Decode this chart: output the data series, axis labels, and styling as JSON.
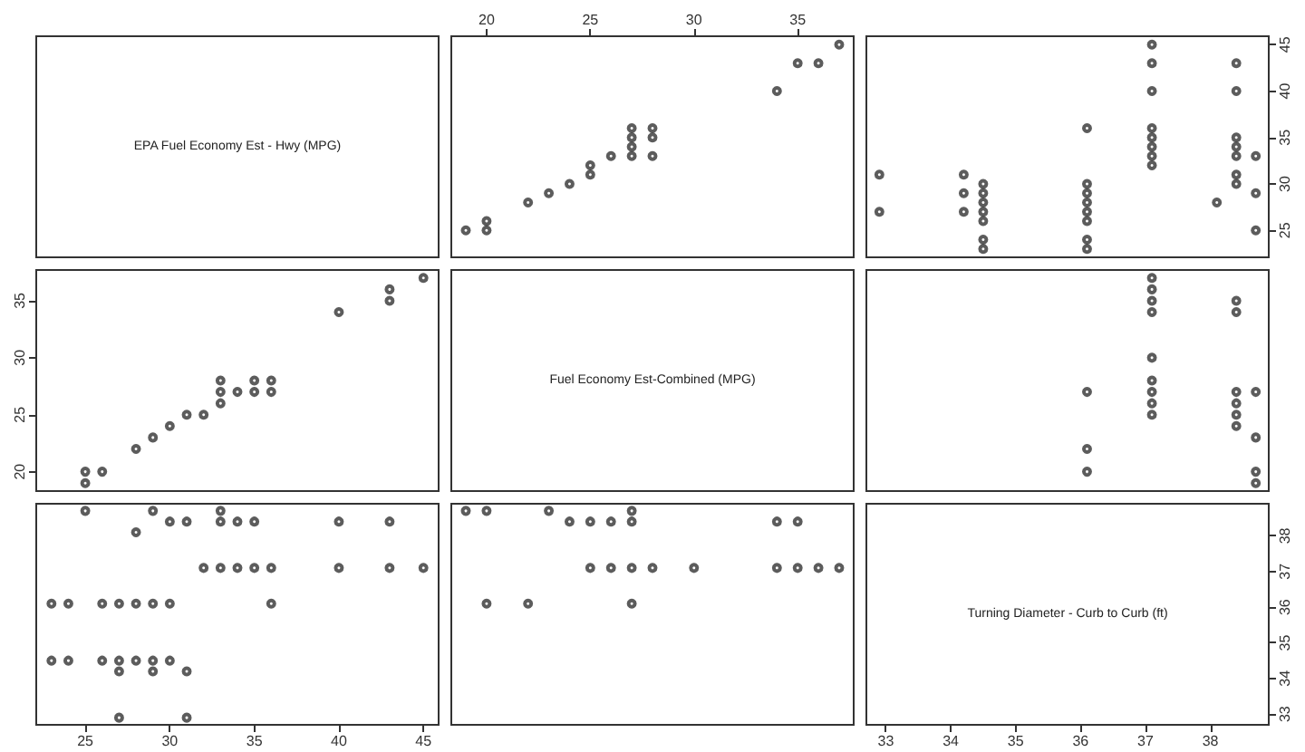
{
  "chart_data": [
    {
      "type": "other",
      "title": "EPA Fuel Economy Est - Hwy (MPG)"
    },
    {
      "type": "scatter",
      "xlim": [
        18.3,
        37.7
      ],
      "xticks": [
        20,
        25,
        30,
        35
      ],
      "ylim": [
        22.1,
        45.9
      ],
      "tick_labels": "x",
      "marker": "circle",
      "grid": false,
      "series": [
        {
          "color": "#333333",
          "x": [
            19,
            20,
            20,
            22,
            23,
            24,
            25,
            25,
            26,
            27,
            27,
            27,
            27,
            28,
            28,
            28,
            34,
            35,
            36,
            37
          ],
          "values": [
            25,
            26,
            25,
            28,
            29,
            30,
            31,
            32,
            33,
            33,
            34,
            35,
            36,
            33,
            35,
            36,
            40,
            43,
            43,
            45
          ]
        }
      ]
    },
    {
      "type": "scatter",
      "xlim": [
        32.7,
        38.9
      ],
      "ylim": [
        22.1,
        45.9
      ],
      "yticks": [
        25,
        30,
        35,
        40,
        45
      ],
      "tick_labels": "y",
      "marker": "circle",
      "grid": false,
      "series": [
        {
          "color": "#333333",
          "x": [
            32.9,
            32.9,
            34.2,
            34.2,
            34.2,
            34.5,
            34.5,
            34.5,
            34.5,
            34.5,
            34.5,
            34.5,
            36.1,
            36.1,
            36.1,
            36.1,
            36.1,
            36.1,
            36.1,
            36.1,
            37.1,
            37.1,
            37.1,
            37.1,
            37.1,
            37.1,
            37.1,
            37.1,
            38.1,
            38.4,
            38.4,
            38.4,
            38.4,
            38.4,
            38.4,
            38.4,
            38.7,
            38.7,
            38.7
          ],
          "values": [
            31,
            27,
            31,
            29,
            27,
            30,
            29,
            28,
            27,
            26,
            24,
            23,
            36,
            30,
            29,
            28,
            27,
            26,
            24,
            23,
            45,
            43,
            40,
            36,
            35,
            34,
            33,
            32,
            28,
            43,
            40,
            35,
            34,
            33,
            31,
            30,
            33,
            29,
            25
          ]
        }
      ]
    },
    {
      "type": "scatter",
      "xlim": [
        22.1,
        45.9
      ],
      "ylim": [
        18.3,
        37.7
      ],
      "yticks": [
        20,
        25,
        30,
        35
      ],
      "tick_labels": "y",
      "marker": "circle",
      "grid": false,
      "series": [
        {
          "color": "#333333",
          "x": [
            25,
            25,
            26,
            28,
            29,
            30,
            31,
            32,
            33,
            33,
            33,
            34,
            35,
            35,
            36,
            36,
            40,
            43,
            43,
            45
          ],
          "values": [
            19,
            20,
            20,
            22,
            23,
            24,
            25,
            25,
            26,
            27,
            28,
            27,
            27,
            28,
            27,
            28,
            34,
            35,
            36,
            37
          ]
        }
      ]
    },
    {
      "type": "other",
      "title": "Fuel Economy Est-Combined (MPG)"
    },
    {
      "type": "scatter",
      "xlim": [
        32.7,
        38.9
      ],
      "ylim": [
        18.3,
        37.7
      ],
      "tick_labels": false,
      "marker": "circle",
      "grid": false,
      "series": [
        {
          "color": "#333333",
          "x": [
            36.1,
            36.1,
            36.1,
            37.1,
            37.1,
            37.1,
            37.1,
            37.1,
            37.1,
            37.1,
            37.1,
            37.1,
            38.4,
            38.4,
            38.4,
            38.4,
            38.4,
            38.4,
            38.7,
            38.7,
            38.7,
            38.7
          ],
          "values": [
            27,
            22,
            20,
            37,
            36,
            35,
            34,
            30,
            28,
            27,
            26,
            25,
            35,
            34,
            27,
            26,
            25,
            24,
            27,
            23,
            20,
            19
          ]
        }
      ]
    },
    {
      "type": "scatter",
      "xlim": [
        22.1,
        45.9
      ],
      "xticks": [
        25,
        30,
        35,
        40,
        45
      ],
      "ylim": [
        32.7,
        38.9
      ],
      "tick_labels": "x",
      "marker": "circle",
      "grid": false,
      "series": [
        {
          "color": "#333333",
          "x": [
            25,
            29,
            33,
            30,
            31,
            33,
            34,
            35,
            40,
            43,
            28,
            32,
            33,
            34,
            35,
            36,
            40,
            43,
            45,
            23,
            24,
            26,
            27,
            28,
            29,
            30,
            36,
            23,
            24,
            26,
            27,
            28,
            29,
            30,
            27,
            29,
            31,
            27,
            31
          ],
          "values": [
            38.7,
            38.7,
            38.7,
            38.4,
            38.4,
            38.4,
            38.4,
            38.4,
            38.4,
            38.4,
            38.1,
            37.1,
            37.1,
            37.1,
            37.1,
            37.1,
            37.1,
            37.1,
            37.1,
            36.1,
            36.1,
            36.1,
            36.1,
            36.1,
            36.1,
            36.1,
            36.1,
            34.5,
            34.5,
            34.5,
            34.5,
            34.5,
            34.5,
            34.5,
            34.2,
            34.2,
            34.2,
            32.9,
            32.9
          ]
        }
      ]
    },
    {
      "type": "scatter",
      "xlim": [
        18.3,
        37.7
      ],
      "ylim": [
        32.7,
        38.9
      ],
      "tick_labels": false,
      "marker": "circle",
      "grid": false,
      "series": [
        {
          "color": "#333333",
          "x": [
            19,
            20,
            23,
            27,
            24,
            25,
            26,
            27,
            34,
            35,
            25,
            26,
            27,
            28,
            30,
            34,
            35,
            36,
            37,
            20,
            22,
            27
          ],
          "values": [
            38.7,
            38.7,
            38.7,
            38.7,
            38.4,
            38.4,
            38.4,
            38.4,
            38.4,
            38.4,
            37.1,
            37.1,
            37.1,
            37.1,
            37.1,
            37.1,
            37.1,
            37.1,
            37.1,
            36.1,
            36.1,
            36.1
          ]
        }
      ]
    },
    {
      "type": "scatter",
      "title": "Turning Diameter - Curb to Curb (ft)",
      "xlim": [
        32.7,
        38.9
      ],
      "xticks": [
        33,
        34,
        35,
        36,
        37,
        38
      ],
      "ylim": [
        32.7,
        38.9
      ],
      "yticks": [
        33,
        34,
        35,
        36,
        37,
        38
      ]
    }
  ]
}
